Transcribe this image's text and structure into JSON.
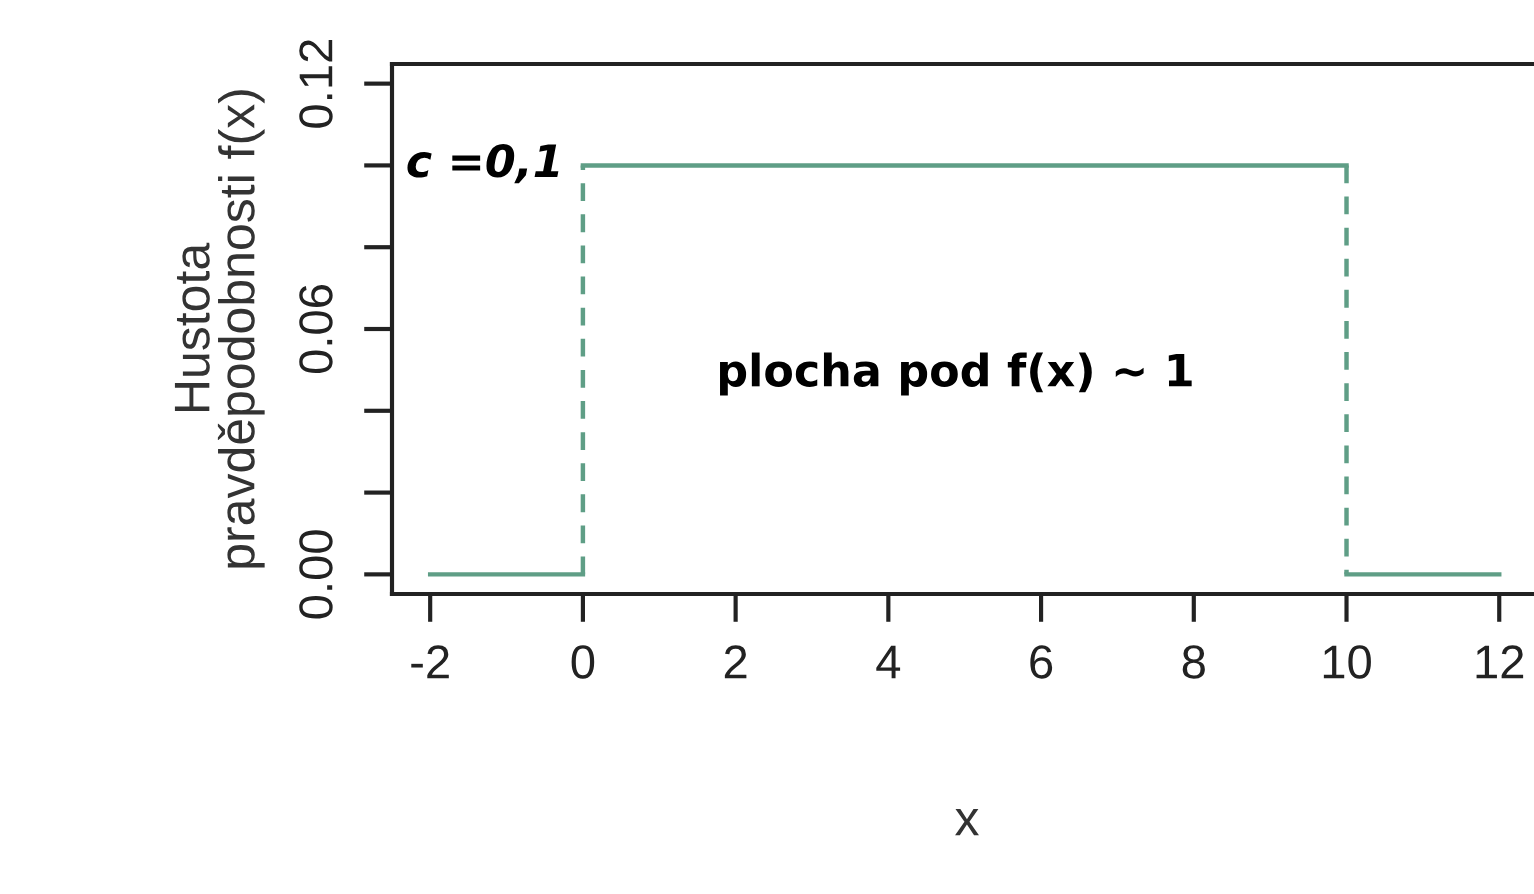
{
  "chart_data": {
    "type": "line",
    "xlabel": "x",
    "ylabel": "Hustota\npravděpodobnosti f(x)",
    "series": [
      {
        "color": "#5f9e86",
        "line_style": "solid",
        "x": [
          -2,
          0
        ],
        "values": [
          0,
          0
        ]
      },
      {
        "color": "#5f9e86",
        "line_style": "dashed",
        "x": [
          0,
          0
        ],
        "values": [
          0,
          0.1
        ]
      },
      {
        "color": "#5f9e86",
        "line_style": "solid",
        "x": [
          0,
          10
        ],
        "values": [
          0.1,
          0.1
        ]
      },
      {
        "color": "#5f9e86",
        "line_style": "dashed",
        "x": [
          10,
          10
        ],
        "values": [
          0.1,
          0
        ]
      },
      {
        "color": "#5f9e86",
        "line_style": "solid",
        "x": [
          10,
          12
        ],
        "values": [
          0,
          0
        ]
      }
    ],
    "xlim": [
      -2.5,
      12.56
    ],
    "ylim": [
      -0.0048,
      0.1248
    ],
    "xticks": [
      -2,
      0,
      2,
      4,
      6,
      8,
      10,
      12
    ],
    "yticks": [
      {
        "value": 0,
        "label": "0.00"
      },
      {
        "value": 0.02,
        "label": null
      },
      {
        "value": 0.04,
        "label": null
      },
      {
        "value": 0.06,
        "label": "0.06"
      },
      {
        "value": 0.08,
        "label": null
      },
      {
        "value": 0.1,
        "label": null
      },
      {
        "value": 0.12,
        "label": "0.12"
      }
    ],
    "annotations": [
      "c =0,1",
      "plocha pod f(x) ~ 1"
    ],
    "grid": false,
    "legend": false,
    "marker": "none"
  }
}
